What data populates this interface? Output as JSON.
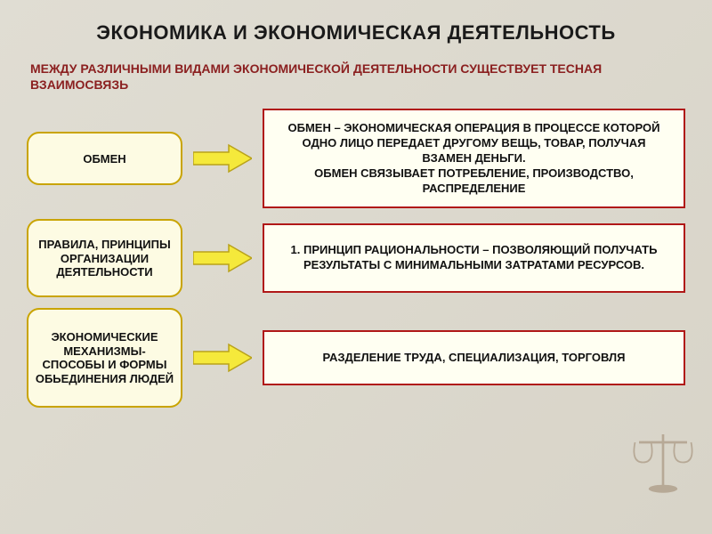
{
  "background_color": "#dcd8cc",
  "title": "ЭКОНОМИКА И ЭКОНОМИЧЕСКАЯ  ДЕЯТЕЛЬНОСТЬ",
  "title_fontsize": 22,
  "title_color": "#1a1a1a",
  "subtitle": "МЕЖДУ РАЗЛИЧНЫМИ ВИДАМИ  ЭКОНОМИЧЕСКОЙ   ДЕЯТЕЛЬНОСТИ СУЩЕСТВУЕТ ТЕСНАЯ ВЗАИМОСВЯЗЬ",
  "subtitle_color": "#8b2020",
  "subtitle_fontsize": 14,
  "rows": [
    {
      "left": "ОБМЕН",
      "left_bg": "#fdfbe3",
      "left_border": "#c9a400",
      "left_height": 60,
      "right": "ОБМЕН – ЭКОНОМИЧЕСКАЯ  ОПЕРАЦИЯ В ПРОЦЕССЕ КОТОРОЙ  ОДНО ЛИЦО ПЕРЕДАЕТ ДРУГОМУ ВЕЩЬ, ТОВАР, ПОЛУЧАЯ ВЗАМЕН ДЕНЬГИ.\nОБМЕН СВЯЗЫВАЕТ  ПОТРЕБЛЕНИЕ, ПРОИЗВОДСТВО, РАСПРЕДЕЛЕНИЕ",
      "right_bg": "#fffff2",
      "right_border": "#b01818",
      "right_height": 112
    },
    {
      "left": "ПРАВИЛА, ПРИНЦИПЫ ОРГАНИЗАЦИИ ДЕЯТЕЛЬНОСТИ",
      "left_bg": "#fdfbe3",
      "left_border": "#c9a400",
      "left_height": 88,
      "right": "1. ПРИНЦИП РАЦИОНАЛЬНОСТИ – ПОЗВОЛЯЮЩИЙ ПОЛУЧАТЬ РЕЗУЛЬТАТЫ С МИНИМАЛЬНЫМИ ЗАТРАТАМИ РЕСУРСОВ.",
      "right_bg": "#fffff2",
      "right_border": "#b01818",
      "right_height": 78
    },
    {
      "left": "ЭКОНОМИЧЕСКИЕ МЕХАНИЗМЫ- СПОСОБЫ И ФОРМЫ ОБЬЕДИНЕНИЯ ЛЮДЕЙ",
      "left_bg": "#fdfbe3",
      "left_border": "#c9a400",
      "left_height": 112,
      "right": "РАЗДЕЛЕНИЕ ТРУДА, СПЕЦИАЛИЗАЦИЯ, ТОРГОВЛЯ",
      "right_bg": "#fffff2",
      "right_border": "#b01818",
      "right_height": 62
    }
  ],
  "arrow": {
    "fill": "#f5e93b",
    "stroke": "#b9a21a",
    "stroke_width": 1.5,
    "width": 66,
    "height": 34
  }
}
